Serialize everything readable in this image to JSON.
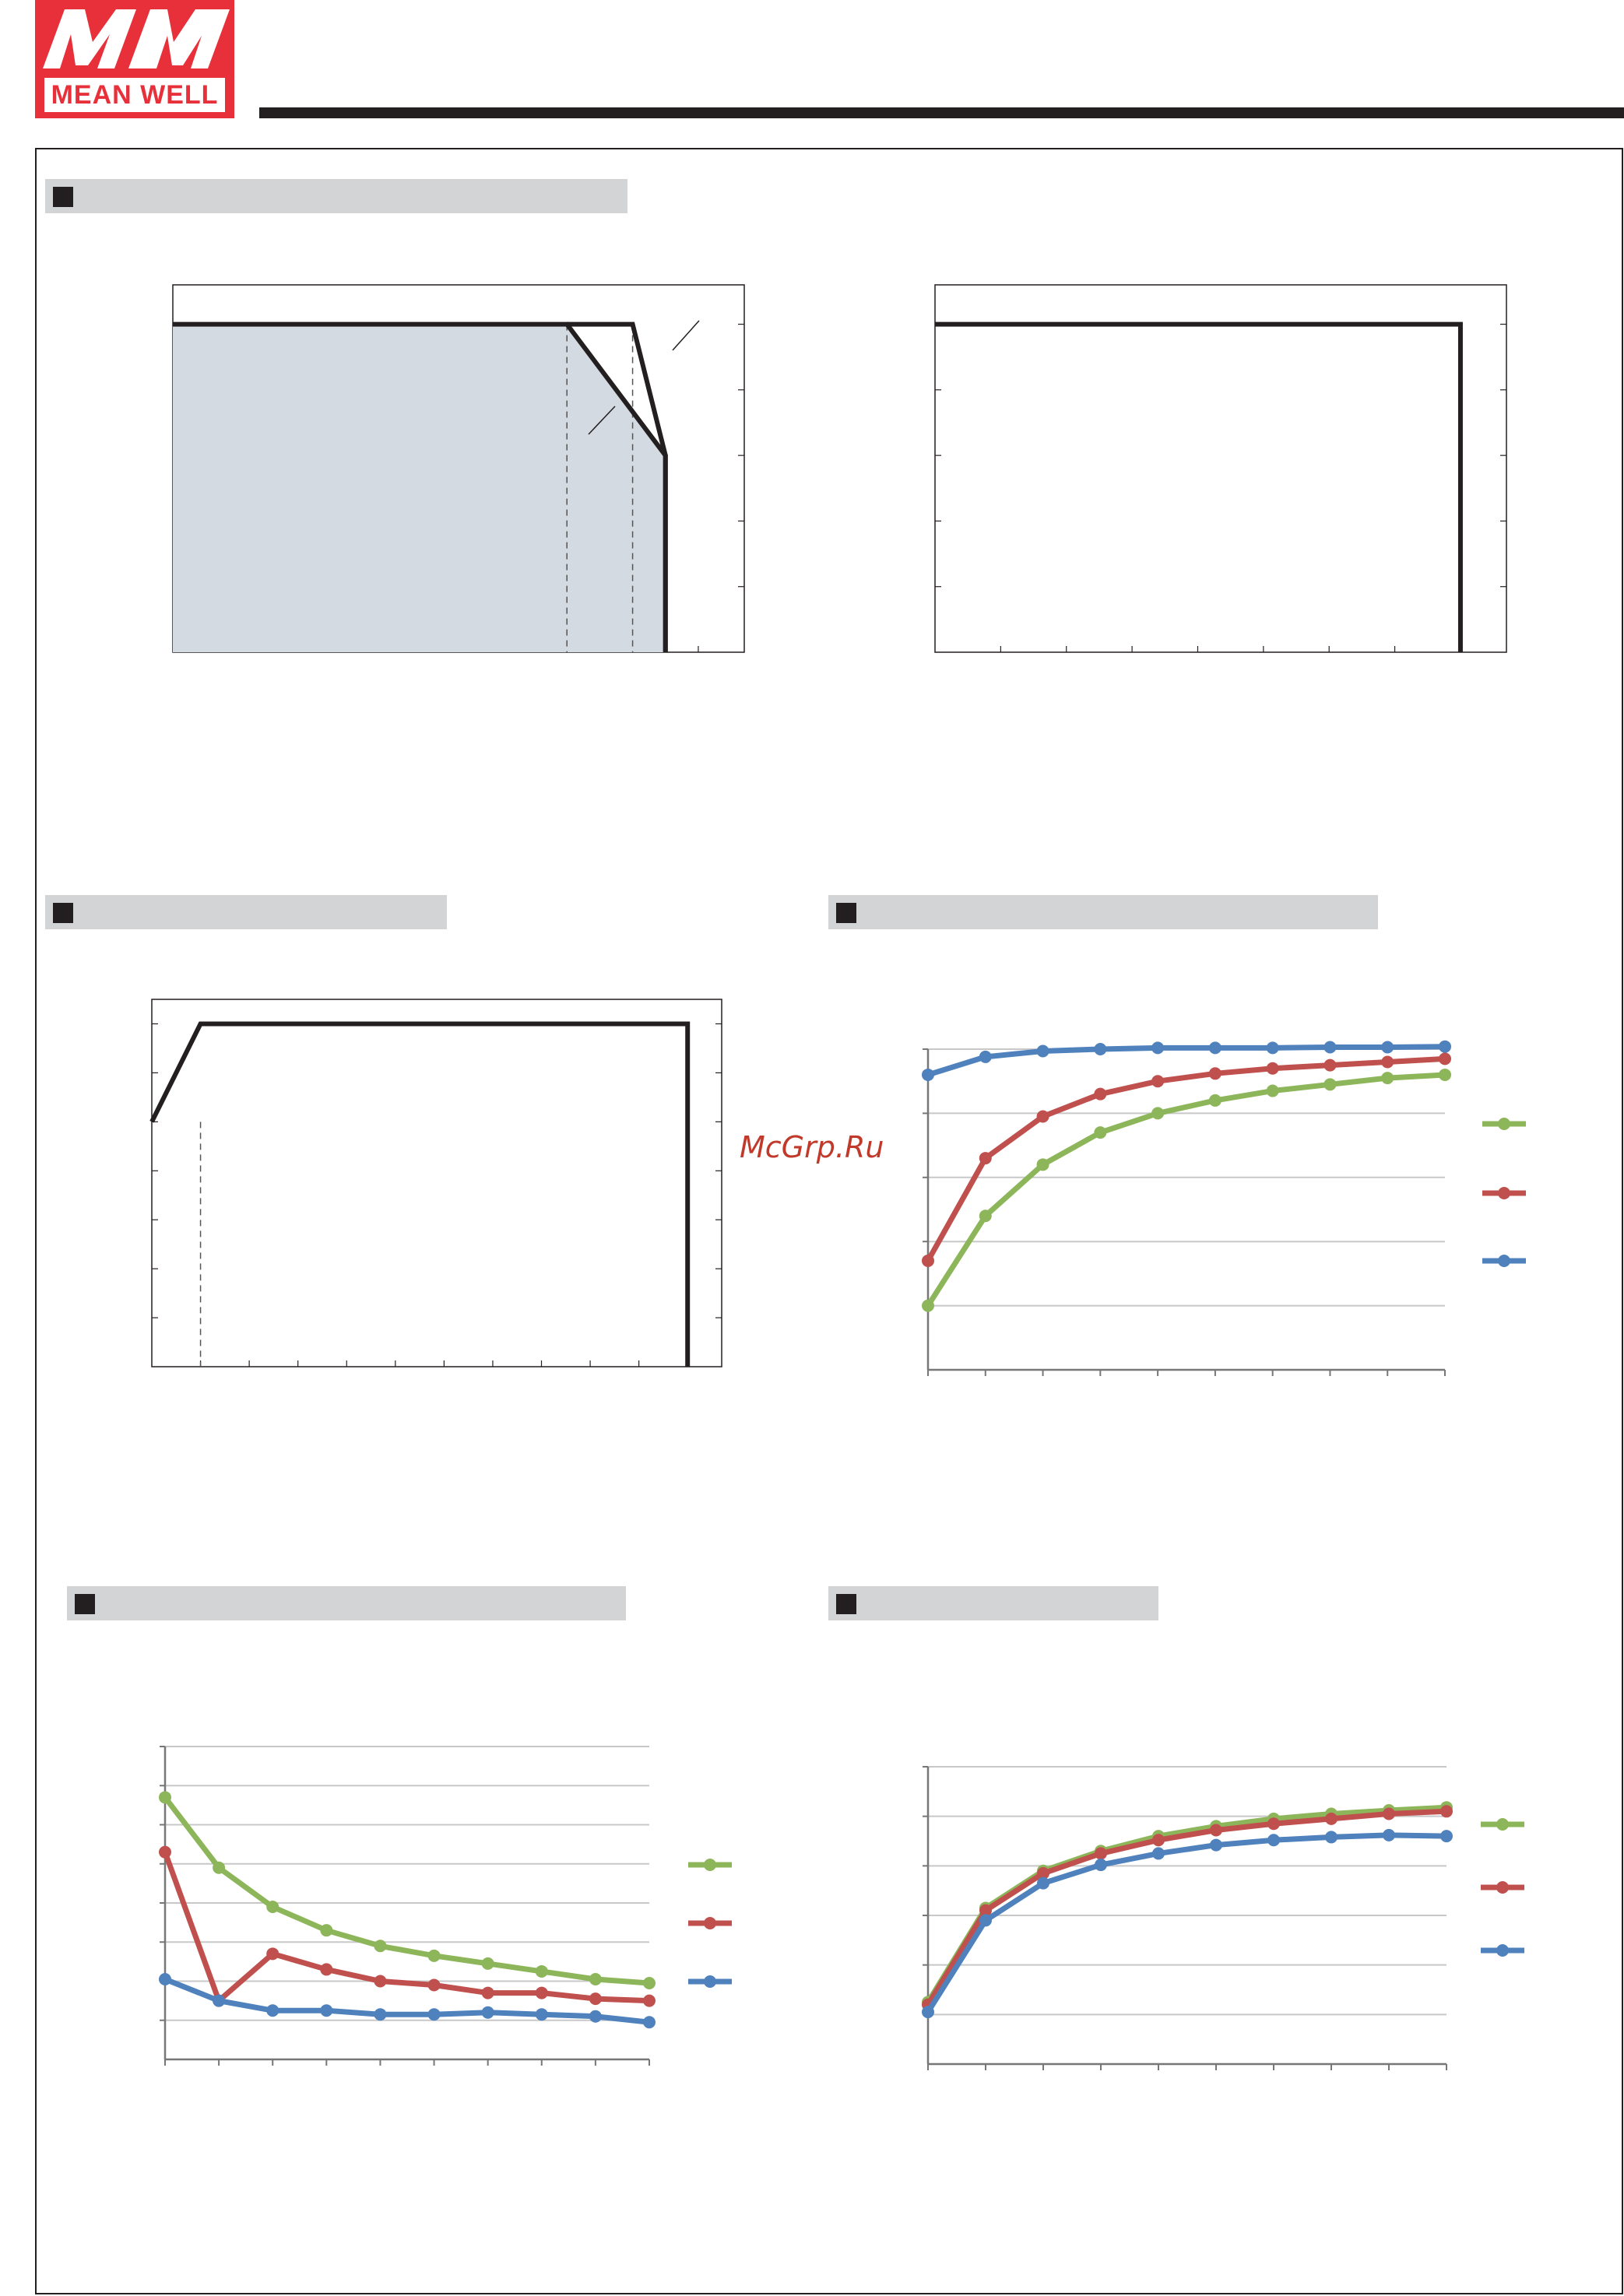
{
  "header": {
    "logo_mark": "MW",
    "brand": "MEAN WELL"
  },
  "watermark": "McGrp.Ru",
  "sections": [
    {
      "id": "derating",
      "label": ""
    },
    {
      "id": "input-derating",
      "label": ""
    },
    {
      "id": "efficiency",
      "label": ""
    },
    {
      "id": "ripple",
      "label": ""
    },
    {
      "id": "power-factor",
      "label": ""
    }
  ],
  "colors": {
    "green": "#8db65a",
    "red": "#c0504d",
    "blue": "#4f81bd",
    "shade": "#d4dae1",
    "line": "#231f20"
  },
  "chart_data": [
    {
      "id": "derating-curve",
      "type": "line",
      "x_ticks": 8,
      "y_ticks": 5,
      "xlim": [
        0,
        8.7
      ],
      "ylim": [
        0,
        5.6
      ],
      "series": [
        {
          "values": [
            [
              0,
              5
            ],
            [
              6,
              5
            ],
            [
              7.5,
              3
            ],
            [
              7.5,
              0
            ]
          ],
          "shaded": true
        },
        {
          "values": [
            [
              6,
              5
            ],
            [
              7,
              5
            ],
            [
              7.5,
              3
            ],
            [
              7.5,
              0
            ]
          ]
        }
      ],
      "dashed_x": [
        6,
        7
      ]
    },
    {
      "id": "input-derating-curve",
      "type": "line",
      "x_ticks": 8,
      "y_ticks": 5,
      "xlim": [
        0,
        8.7
      ],
      "ylim": [
        0,
        5.6
      ],
      "series": [
        {
          "values": [
            [
              0,
              5
            ],
            [
              8,
              5
            ],
            [
              8,
              0
            ]
          ]
        }
      ]
    },
    {
      "id": "output-derating-curve",
      "type": "line",
      "x_ticks": 11,
      "y_ticks": 7,
      "xlim": [
        0,
        11.7
      ],
      "ylim": [
        0,
        7.5
      ],
      "series": [
        {
          "values": [
            [
              0,
              5
            ],
            [
              1,
              7
            ],
            [
              11,
              7
            ],
            [
              11,
              0
            ]
          ]
        }
      ],
      "dashed_x": [
        1
      ]
    },
    {
      "id": "efficiency-chart",
      "type": "line",
      "x": [
        0,
        1,
        2,
        3,
        4,
        5,
        6,
        7,
        8,
        9
      ],
      "ylim": [
        0,
        5
      ],
      "y_gridlines": 5,
      "series": [
        {
          "color_key": "green",
          "values": [
            1.0,
            2.4,
            3.2,
            3.7,
            4.0,
            4.2,
            4.35,
            4.45,
            4.55,
            4.6
          ]
        },
        {
          "color_key": "red",
          "values": [
            1.7,
            3.3,
            3.95,
            4.3,
            4.5,
            4.62,
            4.7,
            4.75,
            4.8,
            4.85
          ]
        },
        {
          "color_key": "blue",
          "values": [
            4.6,
            4.88,
            4.97,
            5.0,
            5.02,
            5.02,
            5.02,
            5.03,
            5.03,
            5.04
          ]
        }
      ]
    },
    {
      "id": "ripple-chart",
      "type": "line",
      "x": [
        0,
        1,
        2,
        3,
        4,
        5,
        6,
        7,
        8,
        9
      ],
      "ylim": [
        0,
        8
      ],
      "y_gridlines": 8,
      "series": [
        {
          "color_key": "green",
          "values": [
            6.7,
            4.9,
            3.9,
            3.3,
            2.9,
            2.65,
            2.45,
            2.25,
            2.05,
            1.95
          ]
        },
        {
          "color_key": "red",
          "values": [
            5.3,
            1.5,
            2.7,
            2.3,
            2.0,
            1.9,
            1.7,
            1.7,
            1.55,
            1.5
          ]
        },
        {
          "color_key": "blue",
          "values": [
            2.05,
            1.5,
            1.25,
            1.25,
            1.15,
            1.15,
            1.2,
            1.15,
            1.1,
            0.95
          ]
        }
      ]
    },
    {
      "id": "power-factor-chart",
      "type": "line",
      "x": [
        0,
        1,
        2,
        3,
        4,
        5,
        6,
        7,
        8,
        9
      ],
      "ylim": [
        0,
        6
      ],
      "y_gridlines": 6,
      "series": [
        {
          "color_key": "green",
          "values": [
            1.25,
            3.15,
            3.9,
            4.3,
            4.6,
            4.8,
            4.95,
            5.05,
            5.12,
            5.18
          ]
        },
        {
          "color_key": "red",
          "values": [
            1.2,
            3.1,
            3.85,
            4.25,
            4.52,
            4.72,
            4.85,
            4.95,
            5.05,
            5.1
          ]
        },
        {
          "color_key": "blue",
          "values": [
            1.05,
            2.9,
            3.65,
            4.02,
            4.25,
            4.42,
            4.52,
            4.58,
            4.62,
            4.6
          ]
        }
      ]
    }
  ]
}
